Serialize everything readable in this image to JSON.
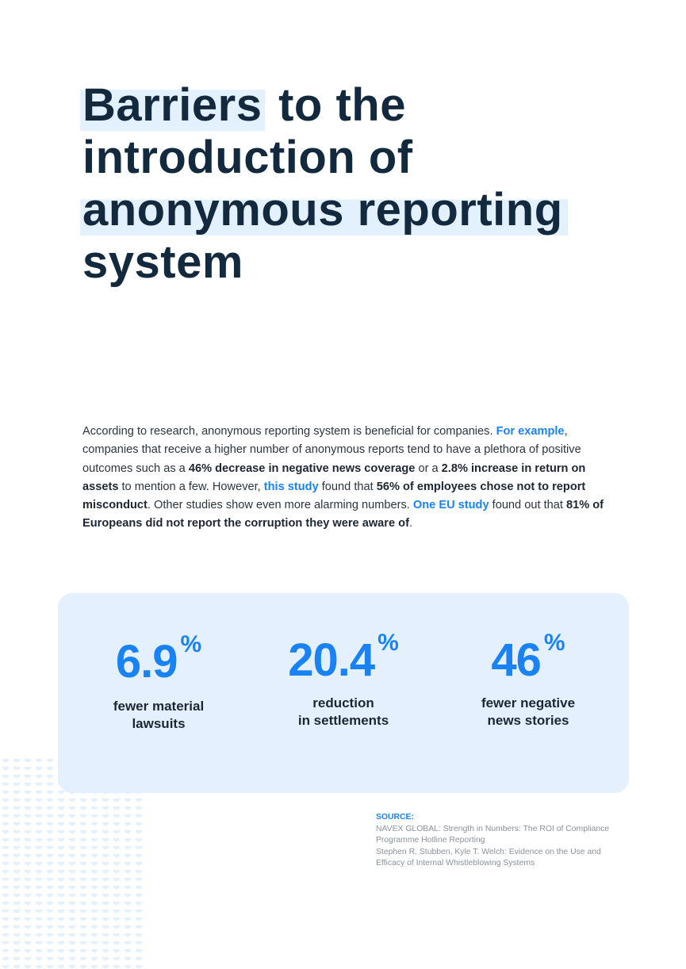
{
  "title": {
    "highlight1": "Barriers",
    "rest1": " to the",
    "line2": "introduction of",
    "highlight2": "anonymous reporting",
    "line4": "system"
  },
  "intro": {
    "t1": "According to research, anonymous reporting system is beneficial for companies. ",
    "link1": "For example",
    "t2": ", companies that receive a higher number of anonymous reports tend to have a plethora of positive outcomes such as a ",
    "b1": "46% decrease in negative news coverage",
    "t3": " or a ",
    "b2": "2.8% increase in return on assets",
    "t4": " to mention a few. However, ",
    "link2": "this study",
    "t5": " found that ",
    "b3": "56% of employees chose not to report misconduct",
    "t6": ". Other studies show even more alarming numbers. ",
    "link3": "One EU study",
    "t7": " found out that ",
    "b4": "81% of Europeans did not report the corruption they were aware of",
    "t8": "."
  },
  "stats": [
    {
      "value": "6.9",
      "unit": "%",
      "line1": "fewer material",
      "line2": "lawsuits"
    },
    {
      "value": "20.4",
      "unit": "%",
      "line1": "reduction",
      "line2": "in settlements"
    },
    {
      "value": "46",
      "unit": "%",
      "line1": "fewer negative",
      "line2": "news stories"
    }
  ],
  "source": {
    "heading": "SOURCE:",
    "ref1": "NAVEX GLOBAL: Strength in Numbers: The ROI of Compliance Programme Hotline Reporting",
    "ref2": "Stephen R. Stubben, Kyle T. Welch: Evidence on the Use and Efficacy of Internal Whistleblowing Systems"
  },
  "colors": {
    "accent": "#1a82f7",
    "heading": "#13293d",
    "card": "#e4f0fd"
  }
}
